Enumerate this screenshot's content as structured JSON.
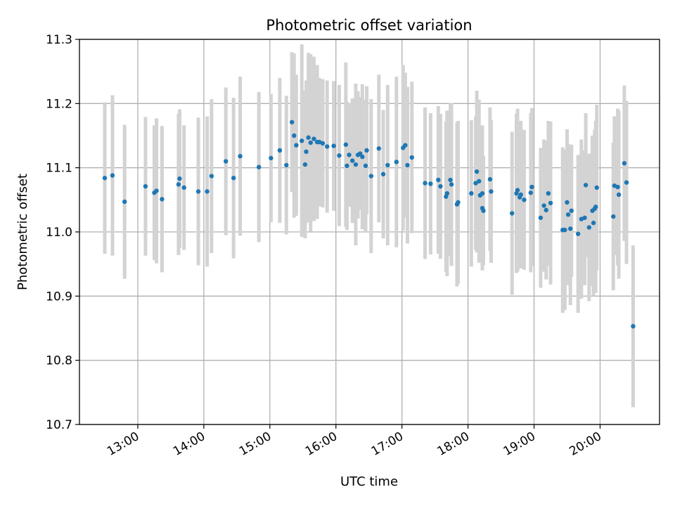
{
  "chart_data": {
    "type": "scatter",
    "title": "Photometric offset variation",
    "xlabel": "UTC time",
    "ylabel": "Photometric offset",
    "x_ticks": [
      "13:00",
      "14:00",
      "15:00",
      "16:00",
      "17:00",
      "18:00",
      "19:00",
      "20:00"
    ],
    "y_ticks": [
      "10.7",
      "10.8",
      "10.9",
      "11.0",
      "11.1",
      "11.2",
      "11.3"
    ],
    "xlim": [
      "12:07",
      "20:54"
    ],
    "ylim": [
      10.7,
      11.3
    ],
    "grid": true,
    "colors": {
      "points": "#1f77b4",
      "error_bars": "#d3d3d3",
      "grid": "#b0b0b0"
    },
    "series": [
      {
        "x": [
          "12:30",
          "12:37",
          "12:48",
          "13:07",
          "13:15",
          "13:17",
          "13:22",
          "13:37",
          "13:38",
          "13:42",
          "13:55",
          "14:03",
          "14:07",
          "14:20",
          "14:27",
          "14:33",
          "14:50",
          "15:01",
          "15:09",
          "15:15",
          "15:20",
          "15:22",
          "15:24",
          "15:29",
          "15:32",
          "15:33",
          "15:35",
          "15:37",
          "15:40",
          "15:43",
          "15:45",
          "15:48",
          "15:52",
          "15:58",
          "16:03",
          "16:09",
          "16:10",
          "16:12",
          "16:15",
          "16:18",
          "16:20",
          "16:22",
          "16:24",
          "16:27",
          "16:28",
          "16:32",
          "16:39",
          "16:43",
          "16:47",
          "16:55",
          "17:01",
          "17:03",
          "17:05",
          "17:09",
          "17:21",
          "17:26",
          "17:33",
          "17:35",
          "17:40",
          "17:41",
          "17:44",
          "17:45",
          "17:50",
          "17:51",
          "18:03",
          "18:07",
          "18:08",
          "18:10",
          "18:11",
          "18:13",
          "18:13",
          "18:14",
          "18:20",
          "18:21",
          "18:40",
          "18:44",
          "18:45",
          "18:47",
          "18:48",
          "18:51",
          "18:57",
          "18:58",
          "19:06",
          "19:09",
          "19:11",
          "19:13",
          "19:15",
          "19:26",
          "19:28",
          "19:30",
          "19:31",
          "19:33",
          "19:34",
          "19:40",
          "19:43",
          "19:46",
          "19:47",
          "19:50",
          "19:53",
          "19:54",
          "19:55",
          "19:56",
          "19:57",
          "20:12",
          "20:13",
          "20:16",
          "20:17",
          "20:22",
          "20:24",
          "20:30"
        ],
        "y": [
          11.084,
          11.088,
          11.047,
          11.071,
          11.061,
          11.064,
          11.051,
          11.074,
          11.083,
          11.069,
          11.063,
          11.063,
          11.087,
          11.11,
          11.084,
          11.118,
          11.101,
          11.115,
          11.127,
          11.104,
          11.171,
          11.15,
          11.135,
          11.142,
          11.105,
          11.125,
          11.147,
          11.139,
          11.145,
          11.14,
          11.14,
          11.138,
          11.133,
          11.134,
          11.119,
          11.136,
          11.103,
          11.12,
          11.111,
          11.105,
          11.12,
          11.122,
          11.117,
          11.103,
          11.127,
          11.087,
          11.13,
          11.09,
          11.104,
          11.109,
          11.131,
          11.135,
          11.104,
          11.116,
          11.076,
          11.075,
          11.081,
          11.071,
          11.055,
          11.06,
          11.081,
          11.074,
          11.043,
          11.046,
          11.06,
          11.076,
          11.094,
          11.079,
          11.057,
          11.06,
          11.037,
          11.033,
          11.082,
          11.063,
          11.029,
          11.06,
          11.065,
          11.054,
          11.058,
          11.05,
          11.061,
          11.07,
          11.022,
          11.041,
          11.034,
          11.06,
          11.045,
          11.003,
          11.003,
          11.046,
          11.027,
          11.005,
          11.033,
          10.997,
          11.02,
          11.022,
          11.073,
          11.007,
          11.033,
          11.014,
          11.036,
          11.039,
          11.069,
          11.024,
          11.072,
          11.07,
          11.058,
          11.107,
          11.077,
          10.853
        ],
        "yerr": [
          0.118,
          0.125,
          0.12,
          0.108,
          0.105,
          0.113,
          0.114,
          0.11,
          0.108,
          0.097,
          0.115,
          0.117,
          0.12,
          0.115,
          0.125,
          0.124,
          0.117,
          0.1,
          0.113,
          0.108,
          0.109,
          0.128,
          0.11,
          0.15,
          0.115,
          0.111,
          0.132,
          0.138,
          0.128,
          0.12,
          0.1,
          0.1,
          0.103,
          0.101,
          0.11,
          0.128,
          0.1,
          0.081,
          0.097,
          0.126,
          0.099,
          0.088,
          0.113,
          0.103,
          0.1,
          0.12,
          0.115,
          0.1,
          0.125,
          0.133,
          0.129,
          0.113,
          0.122,
          0.118,
          0.118,
          0.11,
          0.115,
          0.113,
          0.117,
          0.129,
          0.119,
          0.127,
          0.128,
          0.127,
          0.114,
          0.104,
          0.126,
          0.127,
          0.097,
          0.106,
          0.097,
          0.085,
          0.112,
          0.111,
          0.127,
          0.124,
          0.127,
          0.108,
          0.115,
          0.109,
          0.124,
          0.123,
          0.109,
          0.103,
          0.108,
          0.113,
          0.127,
          0.129,
          0.125,
          0.114,
          0.11,
          0.119,
          0.103,
          0.123,
          0.124,
          0.105,
          0.112,
          0.115,
          0.117,
          0.114,
          0.123,
          0.134,
          0.129,
          0.115,
          0.108,
          0.122,
          0.131,
          0.121,
          0.127,
          0.126
        ]
      }
    ]
  }
}
